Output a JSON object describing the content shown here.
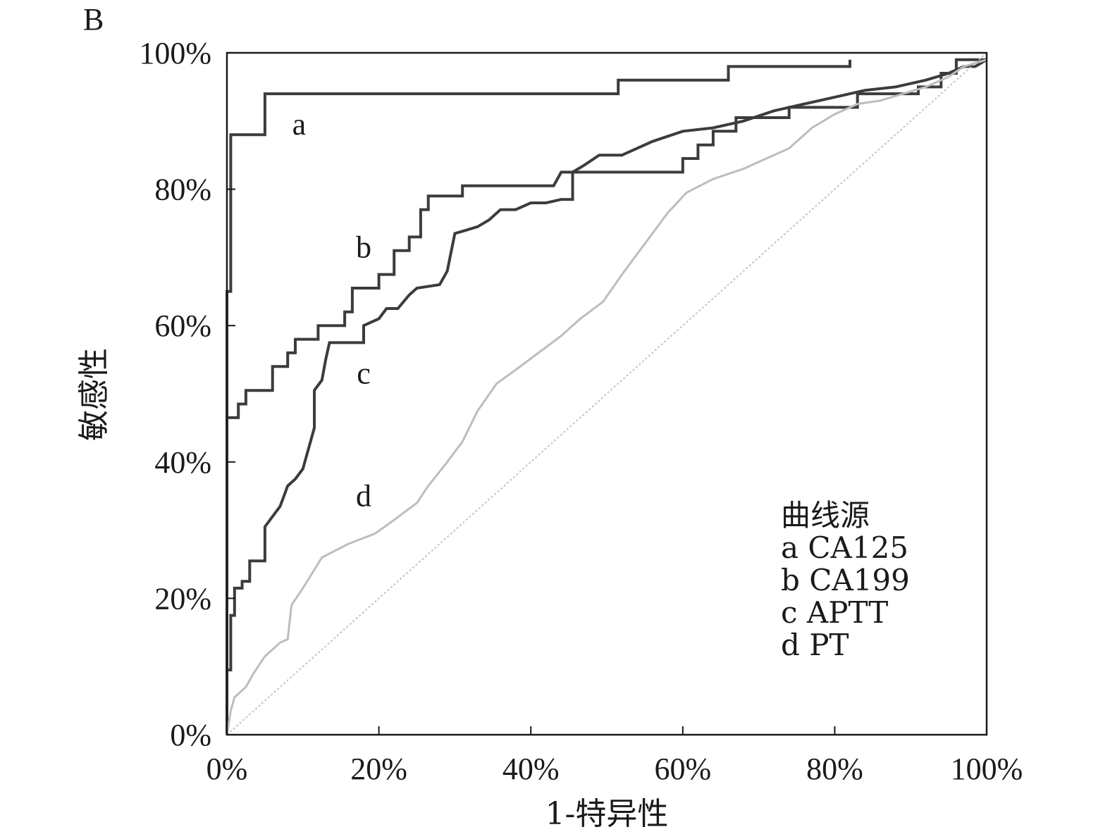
{
  "chart_data": {
    "type": "line",
    "panel_label": "B",
    "xlabel": "1-特异性",
    "ylabel": "敏感性",
    "xlim": [
      0,
      100
    ],
    "ylim": [
      0,
      100
    ],
    "x_ticks": [
      "0%",
      "20%",
      "40%",
      "60%",
      "80%",
      "100%"
    ],
    "y_ticks": [
      "0%",
      "20%",
      "40%",
      "60%",
      "80%",
      "100%"
    ],
    "grid": false,
    "legend": {
      "title": "曲线源",
      "placement": "bottom-right",
      "entries": [
        "a CA125",
        "b CA199",
        "c APTT",
        "d PT"
      ]
    },
    "series": [
      {
        "name": "a CA125",
        "label": "a",
        "color": "#3c3c3c",
        "step": true,
        "points": [
          [
            0,
            0
          ],
          [
            0,
            65
          ],
          [
            0.5,
            65
          ],
          [
            0.5,
            88
          ],
          [
            5,
            88
          ],
          [
            5,
            94
          ],
          [
            51.5,
            94
          ],
          [
            51.5,
            96
          ],
          [
            66,
            96
          ],
          [
            66,
            98
          ],
          [
            82,
            98
          ],
          [
            82,
            99
          ]
        ]
      },
      {
        "name": "b CA199",
        "label": "b",
        "color": "#3c3c3c",
        "step": true,
        "points": [
          [
            0,
            46.5
          ],
          [
            1.5,
            46.5
          ],
          [
            1.5,
            48.5
          ],
          [
            2.5,
            48.5
          ],
          [
            2.5,
            50.5
          ],
          [
            6,
            50.5
          ],
          [
            6,
            54
          ],
          [
            8,
            54
          ],
          [
            8,
            56
          ],
          [
            9,
            56
          ],
          [
            9,
            58
          ],
          [
            12,
            58
          ],
          [
            12,
            60
          ],
          [
            15.5,
            60
          ],
          [
            15.5,
            62
          ],
          [
            16.5,
            62
          ],
          [
            16.5,
            65.5
          ],
          [
            20,
            65.5
          ],
          [
            20,
            67.5
          ],
          [
            22,
            67.5
          ],
          [
            22,
            71
          ],
          [
            24,
            71
          ],
          [
            24,
            73
          ],
          [
            25.5,
            73
          ],
          [
            25.5,
            77
          ],
          [
            26.5,
            77
          ],
          [
            26.5,
            79
          ],
          [
            31,
            79
          ],
          [
            31,
            80.5
          ],
          [
            43,
            80.5
          ],
          [
            44,
            82.5
          ],
          [
            60,
            82.5
          ],
          [
            60,
            84.5
          ],
          [
            62,
            84.5
          ],
          [
            62,
            86.5
          ],
          [
            64,
            86.5
          ],
          [
            64,
            88.5
          ],
          [
            67,
            88.5
          ],
          [
            67,
            90.5
          ],
          [
            74,
            90.5
          ],
          [
            74,
            92
          ],
          [
            83,
            92
          ],
          [
            83,
            94
          ],
          [
            91,
            94
          ],
          [
            91,
            95
          ],
          [
            94,
            95
          ],
          [
            94,
            97
          ],
          [
            96,
            97
          ],
          [
            96,
            99
          ],
          [
            100,
            99
          ]
        ]
      },
      {
        "name": "c APTT",
        "label": "c",
        "color": "#3c3c3c",
        "step": true,
        "points": [
          [
            0,
            9.5
          ],
          [
            0.5,
            9.5
          ],
          [
            0.5,
            17.5
          ],
          [
            1,
            17.5
          ],
          [
            1,
            21.5
          ],
          [
            2,
            21.5
          ],
          [
            2,
            22.5
          ],
          [
            3,
            22.5
          ],
          [
            3,
            25.5
          ],
          [
            5,
            25.5
          ],
          [
            5,
            30.5
          ],
          [
            6,
            32
          ],
          [
            7,
            33.5
          ],
          [
            8,
            36.5
          ],
          [
            9,
            37.5
          ],
          [
            10,
            39
          ],
          [
            11,
            43
          ],
          [
            11.5,
            45
          ],
          [
            11.5,
            50.5
          ],
          [
            12.5,
            52
          ],
          [
            13,
            55
          ],
          [
            13.5,
            57.5
          ],
          [
            18,
            57.5
          ],
          [
            18,
            60
          ],
          [
            20,
            61
          ],
          [
            21,
            62.5
          ],
          [
            22.5,
            62.5
          ],
          [
            24,
            64.5
          ],
          [
            25,
            65.5
          ],
          [
            28,
            66
          ],
          [
            29,
            68
          ],
          [
            30,
            73.5
          ],
          [
            31.5,
            74
          ],
          [
            33,
            74.5
          ],
          [
            34.5,
            75.5
          ],
          [
            36,
            77
          ],
          [
            38,
            77
          ],
          [
            40,
            78
          ],
          [
            42,
            78
          ],
          [
            44,
            78.5
          ],
          [
            45.5,
            78.5
          ],
          [
            45.5,
            82.5
          ],
          [
            47,
            83.5
          ],
          [
            49,
            85
          ],
          [
            52,
            85
          ],
          [
            56,
            87
          ],
          [
            60,
            88.5
          ],
          [
            64,
            89
          ],
          [
            68,
            90
          ],
          [
            72,
            91.5
          ],
          [
            76,
            92.5
          ],
          [
            80,
            93.5
          ],
          [
            84,
            94.5
          ],
          [
            88,
            95
          ],
          [
            92,
            96
          ],
          [
            95,
            97
          ],
          [
            97,
            98
          ],
          [
            98.5,
            98
          ],
          [
            100,
            99
          ]
        ]
      },
      {
        "name": "d PT",
        "label": "d",
        "color": "#bdbdbd",
        "step": false,
        "points": [
          [
            0,
            0
          ],
          [
            0.5,
            3.5
          ],
          [
            1,
            5.5
          ],
          [
            2.5,
            7
          ],
          [
            3.5,
            9
          ],
          [
            5,
            11.5
          ],
          [
            7,
            13.5
          ],
          [
            8,
            14
          ],
          [
            8.5,
            19
          ],
          [
            10,
            21.5
          ],
          [
            12.5,
            26
          ],
          [
            16,
            28
          ],
          [
            19.5,
            29.5
          ],
          [
            22,
            31.5
          ],
          [
            25,
            34
          ],
          [
            26.5,
            36.5
          ],
          [
            29,
            40
          ],
          [
            31,
            43
          ],
          [
            33,
            47.5
          ],
          [
            35.5,
            51.5
          ],
          [
            38,
            53.5
          ],
          [
            41,
            56
          ],
          [
            44,
            58.5
          ],
          [
            46.5,
            61
          ],
          [
            49.5,
            63.5
          ],
          [
            52,
            67.5
          ],
          [
            54,
            70.5
          ],
          [
            56,
            73.5
          ],
          [
            58,
            76.5
          ],
          [
            60.5,
            79.5
          ],
          [
            64,
            81.5
          ],
          [
            68,
            83
          ],
          [
            71,
            84.5
          ],
          [
            74,
            86
          ],
          [
            77,
            89
          ],
          [
            80,
            91
          ],
          [
            83,
            92.5
          ],
          [
            86,
            93
          ],
          [
            89,
            94
          ],
          [
            92,
            95
          ],
          [
            95,
            96.5
          ],
          [
            97,
            98
          ],
          [
            100,
            99
          ]
        ]
      },
      {
        "name": "reference",
        "color": "#c4c4c4",
        "step": false,
        "dashed": true,
        "points": [
          [
            0,
            0
          ],
          [
            100,
            100
          ]
        ]
      }
    ],
    "curve_labels": [
      {
        "text": "a",
        "x": 9.5,
        "y": 88
      },
      {
        "text": "b",
        "x": 18,
        "y": 70
      },
      {
        "text": "c",
        "x": 18,
        "y": 51.5
      },
      {
        "text": "d",
        "x": 18,
        "y": 33.5
      }
    ]
  }
}
